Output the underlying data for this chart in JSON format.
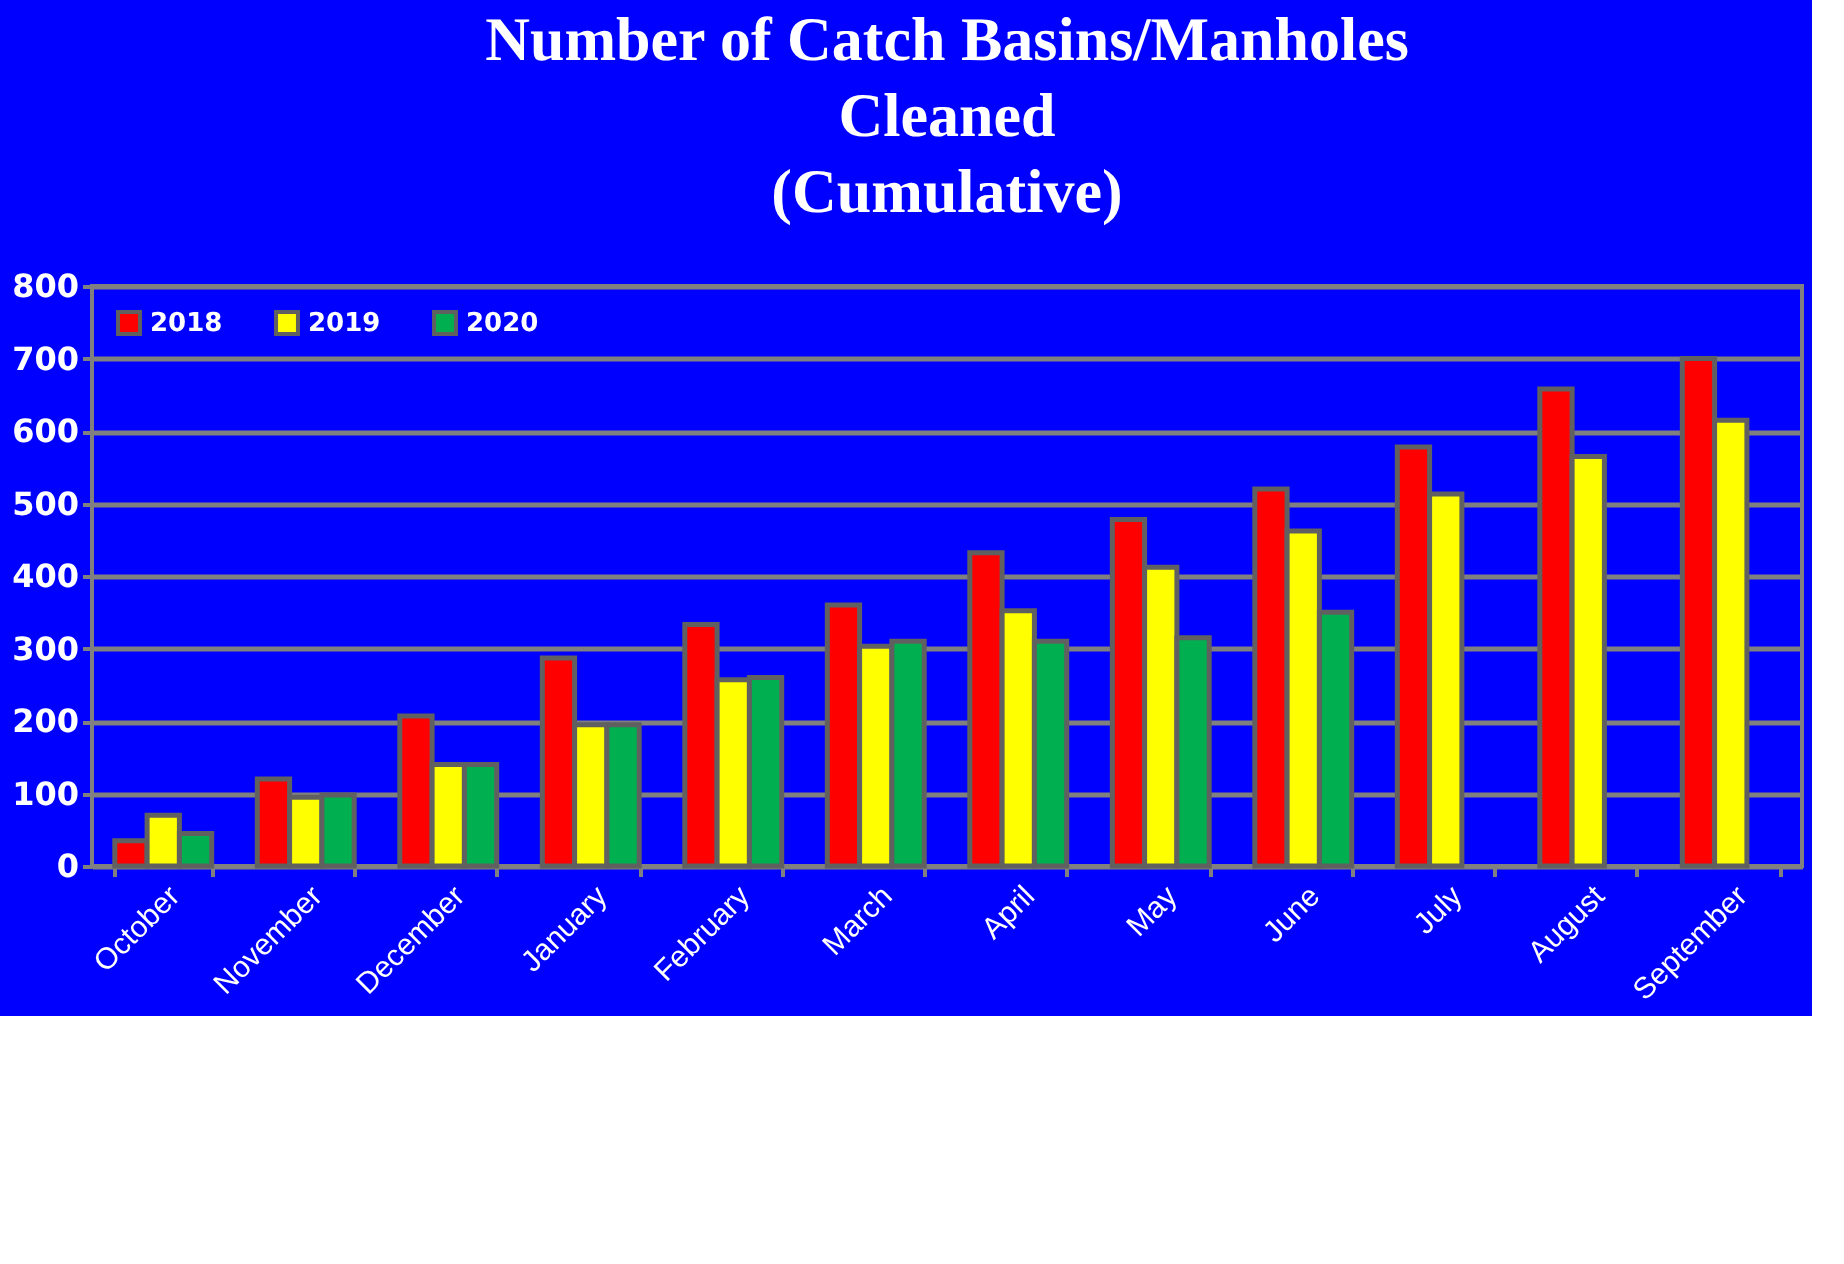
{
  "chart_data": {
    "type": "bar",
    "title": [
      "Number of Catch Basins/Manholes",
      "Cleaned",
      "(Cumulative)"
    ],
    "categories": [
      "October",
      "November",
      "December",
      "January",
      "February",
      "March",
      "April",
      "May",
      "June",
      "July",
      "August",
      "September"
    ],
    "series": [
      {
        "name": "2018",
        "color": "#ff0000",
        "values": [
          35,
          120,
          207,
          287,
          333,
          360,
          432,
          478,
          520,
          578,
          658,
          700
        ]
      },
      {
        "name": "2019",
        "color": "#ffff00",
        "values": [
          70,
          95,
          140,
          195,
          257,
          303,
          352,
          412,
          462,
          513,
          565,
          615
        ]
      },
      {
        "name": "2020",
        "color": "#00b050",
        "values": [
          45,
          98,
          140,
          195,
          260,
          310,
          310,
          315,
          350,
          null,
          null,
          null
        ]
      }
    ],
    "ylim": [
      0,
      800
    ],
    "yticks": [
      0,
      100,
      200,
      300,
      400,
      500,
      600,
      700,
      800
    ],
    "grid": "y",
    "legend": "top left"
  }
}
